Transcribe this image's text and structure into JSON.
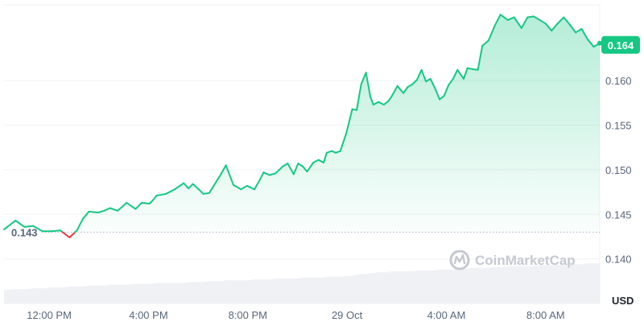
{
  "chart_data": {
    "type": "area",
    "unit": "USD",
    "ylim": [
      0.135,
      0.1685
    ],
    "y_ticks": [
      "0.140",
      "0.145",
      "0.150",
      "0.155",
      "0.160"
    ],
    "x_ticks": [
      "12:00 PM",
      "4:00 PM",
      "8:00 PM",
      "29 Oct",
      "4:00 AM",
      "8:00 AM"
    ],
    "x_tick_hours": [
      12,
      16,
      20,
      24,
      28,
      32
    ],
    "x_range_hours": [
      10.18,
      34.18
    ],
    "grid": true,
    "reference_line": {
      "value": 0.143,
      "label": "0.143"
    },
    "current_price": {
      "value": 0.164,
      "label": "0.164"
    },
    "colors": {
      "up": "#16c784",
      "down": "#ea3943",
      "volume": "#eff1f5",
      "grid": "#eff2f5",
      "badge": "#16c784"
    },
    "series": [
      {
        "hours": [
          10.18,
          10.64,
          11.0,
          11.36,
          11.73,
          12.09,
          12.45,
          12.82,
          13.12,
          13.36,
          13.6,
          13.97,
          14.21,
          14.45,
          14.76,
          15.12,
          15.48,
          15.73,
          16.03,
          16.15,
          16.33,
          16.7,
          17.06,
          17.42,
          17.61,
          17.79,
          18.03,
          18.21,
          18.45,
          18.76,
          18.94,
          19.12,
          19.42,
          19.73,
          19.97,
          20.27,
          20.45,
          20.64,
          20.88,
          21.12,
          21.42,
          21.61,
          21.85,
          22.03,
          22.21,
          22.39,
          22.64,
          22.85,
          23.06,
          23.18,
          23.39,
          23.55,
          23.73,
          23.97,
          24.21,
          24.39,
          24.57,
          24.76,
          24.94,
          25.06,
          25.27,
          25.48,
          25.67,
          25.79,
          26.03,
          26.27,
          26.45,
          26.64,
          26.82,
          27.0,
          27.18,
          27.36,
          27.55,
          27.73,
          27.91,
          28.09,
          28.27,
          28.45,
          28.7,
          28.85,
          29.03,
          29.27,
          29.45,
          29.7,
          29.94,
          30.18,
          30.48,
          30.73,
          31.03,
          31.27,
          31.52,
          31.76,
          32.0,
          32.24,
          32.48,
          32.73,
          32.97,
          33.21,
          33.45,
          33.7,
          33.94,
          34.18
        ],
        "values": [
          0.1433,
          0.1443,
          0.1436,
          0.1437,
          0.1431,
          0.1431,
          0.1432,
          0.1424,
          0.1432,
          0.1445,
          0.1453,
          0.1452,
          0.1454,
          0.1457,
          0.1454,
          0.1463,
          0.1456,
          0.1463,
          0.1462,
          0.1465,
          0.1471,
          0.1473,
          0.1478,
          0.1485,
          0.1479,
          0.1484,
          0.1478,
          0.1473,
          0.1474,
          0.1488,
          0.1496,
          0.1505,
          0.1483,
          0.1478,
          0.1482,
          0.1478,
          0.1487,
          0.1497,
          0.1494,
          0.1496,
          0.1504,
          0.1507,
          0.1495,
          0.1507,
          0.1504,
          0.1498,
          0.1508,
          0.1511,
          0.1508,
          0.1519,
          0.1521,
          0.1519,
          0.1521,
          0.1541,
          0.1568,
          0.1567,
          0.1596,
          0.1609,
          0.1582,
          0.1573,
          0.1576,
          0.1573,
          0.1577,
          0.1582,
          0.1594,
          0.1586,
          0.1593,
          0.1596,
          0.1601,
          0.1612,
          0.1599,
          0.1602,
          0.1591,
          0.1579,
          0.1583,
          0.1595,
          0.1602,
          0.1612,
          0.1602,
          0.1614,
          0.1613,
          0.1612,
          0.1639,
          0.1645,
          0.1661,
          0.1674,
          0.1668,
          0.1671,
          0.1659,
          0.1671,
          0.1672,
          0.1668,
          0.1664,
          0.1656,
          0.1664,
          0.1671,
          0.1663,
          0.1654,
          0.1658,
          0.1646,
          0.1638,
          0.1642
        ],
        "volume": [
          0.1365,
          0.1366,
          0.1366,
          0.1367,
          0.1367,
          0.1368,
          0.1368,
          0.1369,
          0.1369,
          0.1369,
          0.137,
          0.137,
          0.137,
          0.1371,
          0.1371,
          0.1371,
          0.1372,
          0.1372,
          0.1372,
          0.1372,
          0.1373,
          0.1373,
          0.1373,
          0.1373,
          0.1374,
          0.1374,
          0.1374,
          0.1374,
          0.1375,
          0.1375,
          0.1375,
          0.1376,
          0.1376,
          0.1376,
          0.1376,
          0.1377,
          0.1377,
          0.1377,
          0.1377,
          0.1378,
          0.1378,
          0.1378,
          0.1378,
          0.1378,
          0.1379,
          0.1379,
          0.1379,
          0.1379,
          0.1379,
          0.138,
          0.138,
          0.138,
          0.138,
          0.1381,
          0.1381,
          0.1382,
          0.1383,
          0.1383,
          0.1384,
          0.1384,
          0.1385,
          0.1385,
          0.1385,
          0.1386,
          0.1386,
          0.1386,
          0.1386,
          0.1386,
          0.1387,
          0.1387,
          0.1387,
          0.1387,
          0.1387,
          0.1388,
          0.1388,
          0.1388,
          0.1388,
          0.1389,
          0.1389,
          0.1389,
          0.139,
          0.139,
          0.139,
          0.139,
          0.1391,
          0.1391,
          0.1391,
          0.1392,
          0.1392,
          0.1392,
          0.1392,
          0.1393,
          0.1393,
          0.1393,
          0.1393,
          0.1394,
          0.1394,
          0.1394,
          0.1394,
          0.1395,
          0.1395,
          0.1395
        ]
      }
    ]
  },
  "watermark": {
    "text": "CoinMarketCap",
    "icon": "coinmarketcap-logo-icon"
  }
}
